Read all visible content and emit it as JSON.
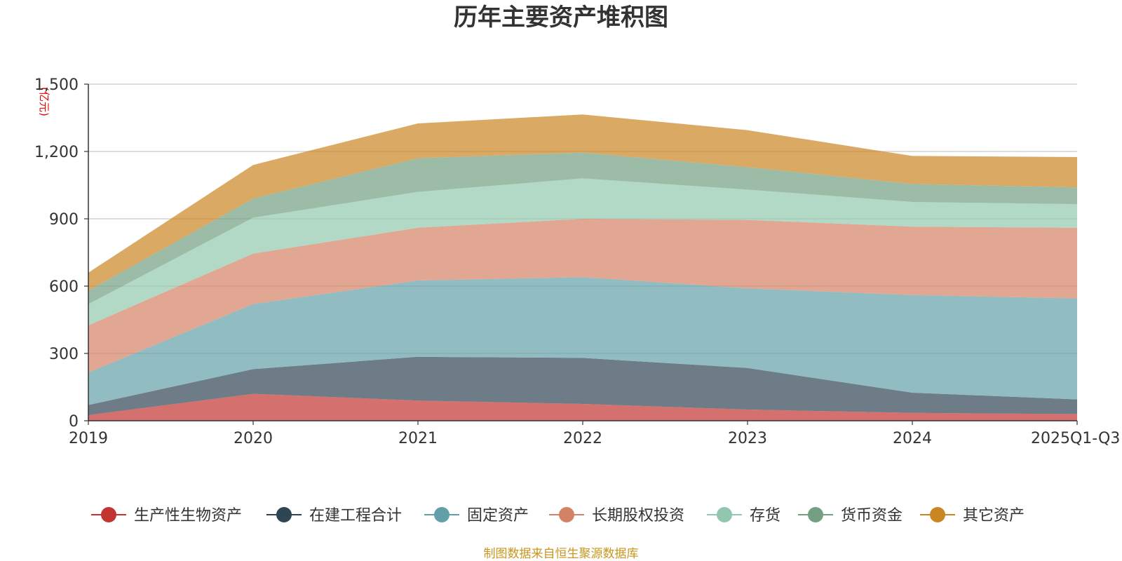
{
  "chart_data": {
    "type": "area",
    "stacked": true,
    "title": "历年主要资产堆积图",
    "unit_label": "(亿元)",
    "source_note": "制图数据来自恒生聚源数据库",
    "categories": [
      "2019",
      "2020",
      "2021",
      "2022",
      "2023",
      "2024",
      "2025Q1-Q3"
    ],
    "y_ticks": [
      "0",
      "300",
      "600",
      "900",
      "1,200",
      "1,500"
    ],
    "ylim": [
      0,
      1500
    ],
    "grid": true,
    "legend_position": "bottom",
    "series": [
      {
        "name": "生产性生物资产",
        "color": "#c23531",
        "values": [
          25,
          120,
          90,
          75,
          50,
          35,
          30
        ]
      },
      {
        "name": "在建工程合计",
        "color": "#2f4554",
        "values": [
          45,
          110,
          195,
          205,
          185,
          90,
          65
        ]
      },
      {
        "name": "固定资产",
        "color": "#61a0a8",
        "values": [
          145,
          290,
          340,
          360,
          355,
          435,
          450
        ]
      },
      {
        "name": "长期股权投资",
        "color": "#d48265",
        "values": [
          210,
          225,
          235,
          260,
          305,
          305,
          315
        ]
      },
      {
        "name": "存货",
        "color": "#91c7ae",
        "values": [
          95,
          160,
          160,
          180,
          135,
          110,
          105
        ]
      },
      {
        "name": "货币资金",
        "color": "#749f83",
        "values": [
          60,
          85,
          150,
          115,
          100,
          80,
          75
        ]
      },
      {
        "name": "其它资产",
        "color": "#ca8622",
        "values": [
          80,
          150,
          155,
          170,
          165,
          125,
          135
        ]
      }
    ]
  }
}
